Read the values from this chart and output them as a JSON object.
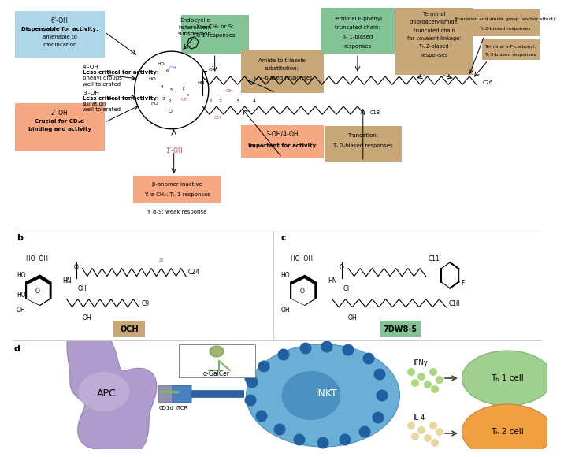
{
  "background_color": "#ffffff",
  "panel_a": {
    "blue_box": {
      "text": "6’-OH\nDispensable for activity:\namenable to\nmodification",
      "color": "#aed6e8"
    },
    "salmon_box1": {
      "text": "2’-OH\nCrucial for CD₁d\nbinding and activity",
      "color": "#f5a882"
    },
    "green_box1": {
      "text": "X = CH₂ or S:\nTₕ 1 responses",
      "color": "#82c496"
    },
    "tan_box1": {
      "text": "Amide to triazole\nsubstitution:\nTₕ 2-biased responses",
      "color": "#b5956a"
    },
    "green_box2": {
      "text": "Terminal F-phenyl\ntruncated chain:\nTₕ 1-biased\nresponses",
      "color": "#82c496"
    },
    "tan_box2": {
      "text": "Terminal\nchloroacetylamide\ntruncated chain\nfor covalent linkage:\nTₕ 2-biased\nresponses",
      "color": "#b5956a"
    },
    "tan_box3": {
      "text": "Truncation and amide group (anchor effect):\nTₕ 2-biased responses",
      "color": "#b5956a"
    },
    "tan_box4": {
      "text": "Terminal α-F-carbonyl:\nTₕ 2-biased responses",
      "color": "#b5956a"
    },
    "salmon_box2": {
      "text": "3-OH/4-OH\nImportant for activity",
      "color": "#f5a882"
    },
    "tan_box5": {
      "text": "Truncation:\nTₕ 2-biased responses",
      "color": "#b5956a"
    },
    "salmon_box3": {
      "text": "β-anomer inactive\nY: α-CH₂: Tₕ 1 responses",
      "color": "#f5a882"
    },
    "tan_box_och": {
      "text": "OCH",
      "color": "#b5956a"
    },
    "green_box_7dw": {
      "text": "7DW8-5",
      "color": "#82c496"
    }
  }
}
